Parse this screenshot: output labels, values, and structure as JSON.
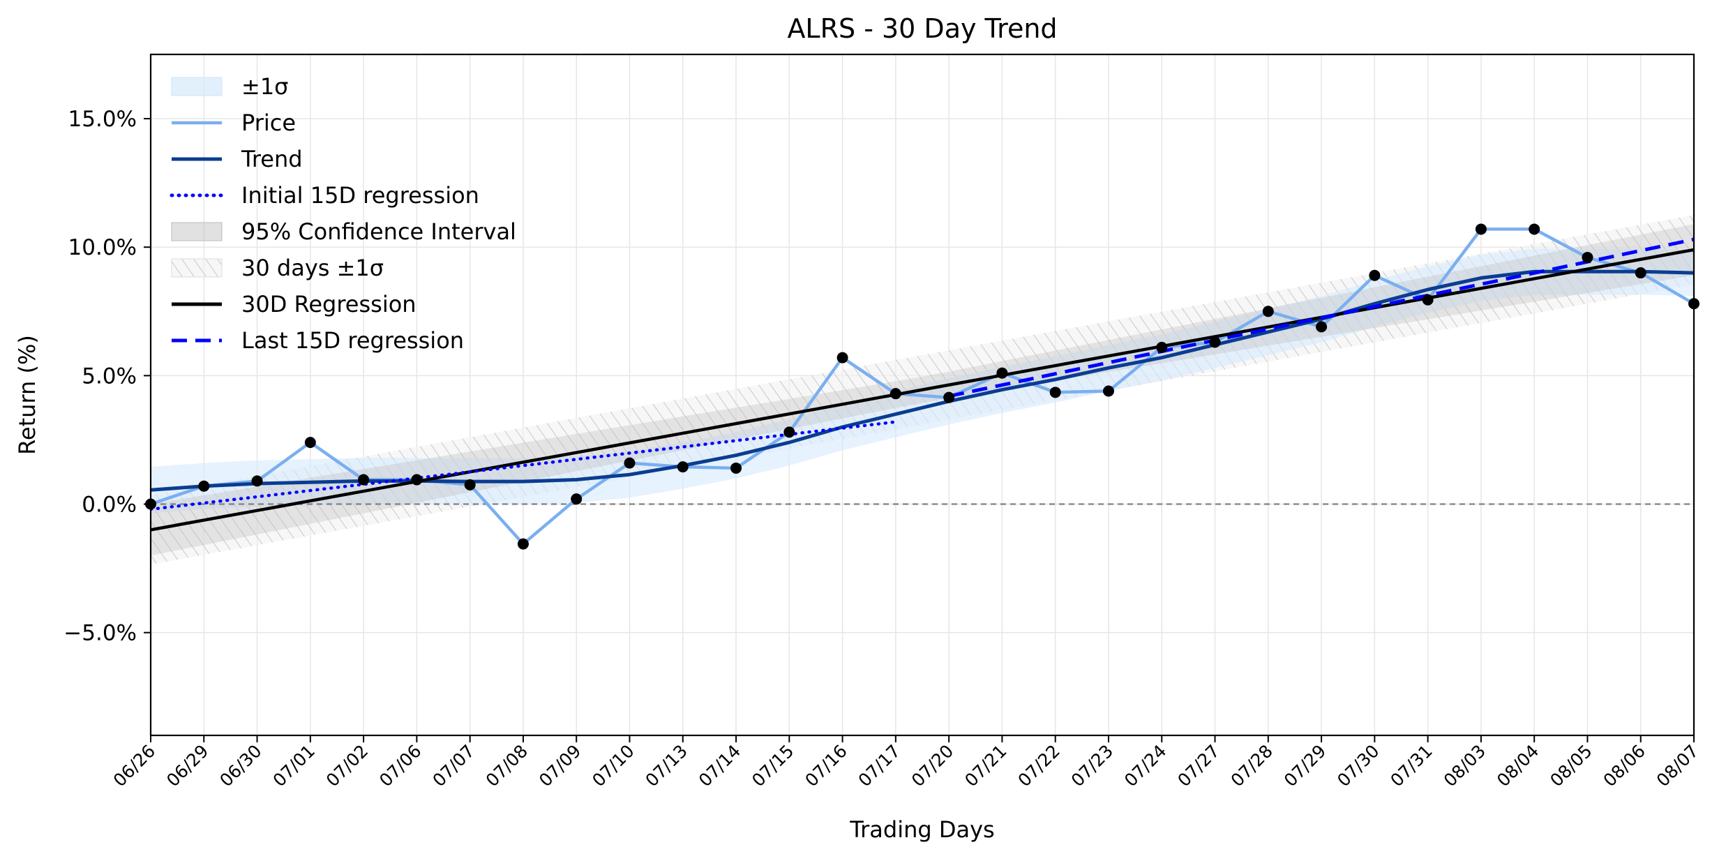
{
  "chart_data": {
    "type": "line",
    "title": "ALRS - 30 Day Trend",
    "xlabel": "Trading Days",
    "ylabel": "Return (%)",
    "categories": [
      "06/26",
      "06/29",
      "06/30",
      "07/01",
      "07/02",
      "07/06",
      "07/07",
      "07/08",
      "07/09",
      "07/10",
      "07/13",
      "07/14",
      "07/15",
      "07/16",
      "07/17",
      "07/20",
      "07/21",
      "07/22",
      "07/23",
      "07/24",
      "07/27",
      "07/28",
      "07/29",
      "07/30",
      "07/31",
      "08/03",
      "08/04",
      "08/05",
      "08/06",
      "08/07"
    ],
    "ylim": [
      -9.0,
      17.5
    ],
    "yticks": [
      -5.0,
      0.0,
      5.0,
      10.0,
      15.0
    ],
    "ytick_labels": [
      "−5.0%",
      "0.0%",
      "5.0%",
      "10.0%",
      "15.0%"
    ],
    "grid": true,
    "legend_position": "top-left",
    "zero_line": 0.0,
    "colors": {
      "price": "#7aaff0",
      "trend": "#0a3d91",
      "initial_regression": "#0000ff",
      "last_regression": "#0000ff",
      "regression_30d": "#000000",
      "sigma_band": "#d6e9fb",
      "confidence_band": "#bdbdbd",
      "hatch_band": "#c8c8c8",
      "points": "#000000",
      "zero_line": "#808080"
    },
    "series": [
      {
        "name": "Price",
        "values": [
          0.0,
          0.7,
          0.9,
          2.4,
          0.95,
          0.95,
          0.75,
          -1.55,
          0.2,
          1.6,
          1.45,
          1.4,
          2.8,
          5.7,
          4.3,
          4.15,
          5.1,
          4.35,
          4.4,
          6.1,
          6.3,
          7.5,
          6.9,
          8.9,
          7.95,
          10.7,
          10.7,
          9.6,
          9.0,
          7.8
        ]
      },
      {
        "name": "Trend",
        "values": [
          0.55,
          0.7,
          0.8,
          0.85,
          0.9,
          0.9,
          0.88,
          0.88,
          0.95,
          1.15,
          1.5,
          1.9,
          2.4,
          3.0,
          3.5,
          4.0,
          4.45,
          4.85,
          5.3,
          5.7,
          6.2,
          6.7,
          7.2,
          7.8,
          8.35,
          8.8,
          9.05,
          9.05,
          9.05,
          9.0
        ]
      },
      {
        "name": "Initial 15D regression",
        "x_range": [
          0,
          14
        ],
        "start": -0.2,
        "end": 3.2
      },
      {
        "name": "Last 15D regression",
        "x_range": [
          15,
          29
        ],
        "start": 4.2,
        "end": 10.3
      },
      {
        "name": "30D Regression",
        "x_range": [
          0,
          29
        ],
        "start": -1.0,
        "end": 9.9
      },
      {
        "name": "95% Confidence Interval",
        "half_width": [
          1.0,
          0.5,
          1.0
        ]
      },
      {
        "name": "30 days ±1σ",
        "half_width": 1.35
      },
      {
        "name": "±1σ",
        "half_width": [
          0.9,
          0.9,
          0.9
        ]
      }
    ],
    "legend": [
      "±1σ",
      "Price",
      "Trend",
      "Initial 15D regression",
      "95% Confidence Interval",
      "30 days ±1σ",
      "30D Regression",
      "Last 15D regression"
    ]
  }
}
